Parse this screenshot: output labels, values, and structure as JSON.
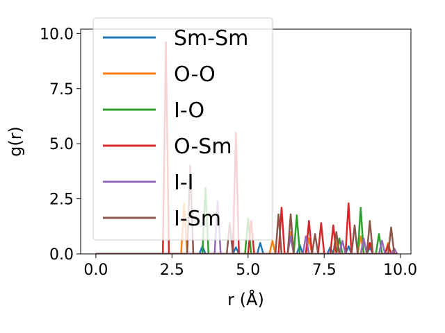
{
  "chart_data": {
    "type": "line",
    "title": "",
    "xlabel": "r (Å)",
    "ylabel": "g(r)",
    "xlim": [
      -0.5,
      10.35
    ],
    "ylim": [
      0,
      10.2
    ],
    "grid": false,
    "legend_position": "upper-left",
    "x_ticks": [
      0.0,
      2.5,
      5.0,
      7.5,
      10.0
    ],
    "x_tick_labels": [
      "0.0",
      "2.5",
      "5.0",
      "7.5",
      "10.0"
    ],
    "y_ticks": [
      0.0,
      2.5,
      5.0,
      7.5,
      10.0
    ],
    "y_tick_labels": [
      "0.0",
      "2.5",
      "5.0",
      "7.5",
      "10.0"
    ],
    "series": [
      {
        "name": "Sm-Sm",
        "color": "#1f77b4",
        "x": [
          0,
          3.4,
          3.5,
          3.6,
          4.5,
          4.6,
          4.7,
          5.3,
          5.4,
          5.5,
          6.6,
          6.7,
          6.8,
          7.6,
          7.7,
          7.8,
          8.2,
          8.3,
          8.4,
          8.9,
          9.0,
          9.1,
          9.9
        ],
        "y": [
          0,
          0,
          0.35,
          0,
          0,
          0.3,
          0,
          0,
          0.5,
          0,
          0,
          0.4,
          0,
          0,
          0.3,
          0,
          0,
          0.35,
          0,
          0,
          0.3,
          0,
          0
        ]
      },
      {
        "name": "O-O",
        "color": "#ff7f0e",
        "x": [
          0,
          2.8,
          2.9,
          3.0,
          5.7,
          5.8,
          5.9,
          6.3,
          6.4,
          6.5,
          6.9,
          7.0,
          7.1,
          7.8,
          7.9,
          8.0,
          8.6,
          8.7,
          8.8,
          9.5,
          9.6,
          9.7,
          9.9
        ],
        "y": [
          0,
          0,
          2.3,
          0,
          0,
          0.6,
          0,
          0,
          1.0,
          0,
          0,
          0.7,
          0,
          0,
          0.6,
          0,
          0,
          0.8,
          0,
          0,
          0.5,
          0,
          0
        ]
      },
      {
        "name": "I-O",
        "color": "#2ca02c",
        "x": [
          0,
          3.5,
          3.6,
          3.7,
          4.9,
          5.0,
          5.1,
          6.5,
          6.6,
          6.7,
          7.9,
          8.0,
          8.1,
          8.6,
          8.7,
          8.8,
          9.2,
          9.3,
          9.4,
          9.9
        ],
        "y": [
          0,
          0,
          3.0,
          0,
          0,
          1.6,
          0,
          0,
          1.75,
          0,
          0,
          0.7,
          0,
          0,
          2.1,
          0,
          0,
          0.9,
          0,
          0
        ]
      },
      {
        "name": "O-Sm",
        "color": "#d62728",
        "x": [
          0,
          2.2,
          2.3,
          2.4,
          4.5,
          4.6,
          4.7,
          5.0,
          5.1,
          5.2,
          6.0,
          6.1,
          6.2,
          6.9,
          7.0,
          7.1,
          7.3,
          7.4,
          7.5,
          7.7,
          7.8,
          7.9,
          8.2,
          8.3,
          8.4,
          8.9,
          9.0,
          9.1,
          9.5,
          9.6,
          9.7,
          9.9
        ],
        "y": [
          0,
          0,
          9.6,
          0,
          0,
          5.5,
          0,
          0,
          1.5,
          0,
          0,
          2.1,
          0,
          0,
          1.5,
          0,
          0,
          1.4,
          0,
          0,
          1.3,
          0,
          0,
          2.3,
          0,
          0,
          0.5,
          0,
          0,
          0.4,
          0,
          0
        ]
      },
      {
        "name": "I-I",
        "color": "#9467bd",
        "x": [
          0,
          3.9,
          4.0,
          4.1,
          6.3,
          6.4,
          6.5,
          6.8,
          6.9,
          7.0,
          8.0,
          8.1,
          8.2,
          8.7,
          8.8,
          8.9,
          9.3,
          9.4,
          9.5,
          9.7,
          9.8,
          9.9
        ],
        "y": [
          0,
          0,
          2.4,
          0,
          0,
          0.8,
          0,
          0,
          0.8,
          0,
          0,
          0.6,
          0,
          0,
          0.7,
          0,
          0,
          0.6,
          0,
          0,
          0.25,
          0
        ]
      },
      {
        "name": "I-Sm",
        "color": "#8c564b",
        "x": [
          0,
          3.0,
          3.1,
          3.2,
          4.3,
          4.4,
          4.5,
          5.9,
          6.0,
          6.1,
          6.3,
          6.4,
          6.5,
          7.1,
          7.2,
          7.3,
          7.8,
          7.9,
          8.0,
          8.4,
          8.5,
          8.6,
          8.9,
          9.0,
          9.1,
          9.6,
          9.7,
          9.8,
          9.9
        ],
        "y": [
          0,
          0,
          4.0,
          0,
          0,
          1.4,
          0,
          0,
          1.8,
          0,
          0,
          1.8,
          0,
          0,
          0.9,
          0,
          0,
          1.0,
          0,
          0,
          1.3,
          0,
          0,
          1.5,
          0,
          0,
          1.2,
          0,
          0
        ]
      }
    ]
  }
}
